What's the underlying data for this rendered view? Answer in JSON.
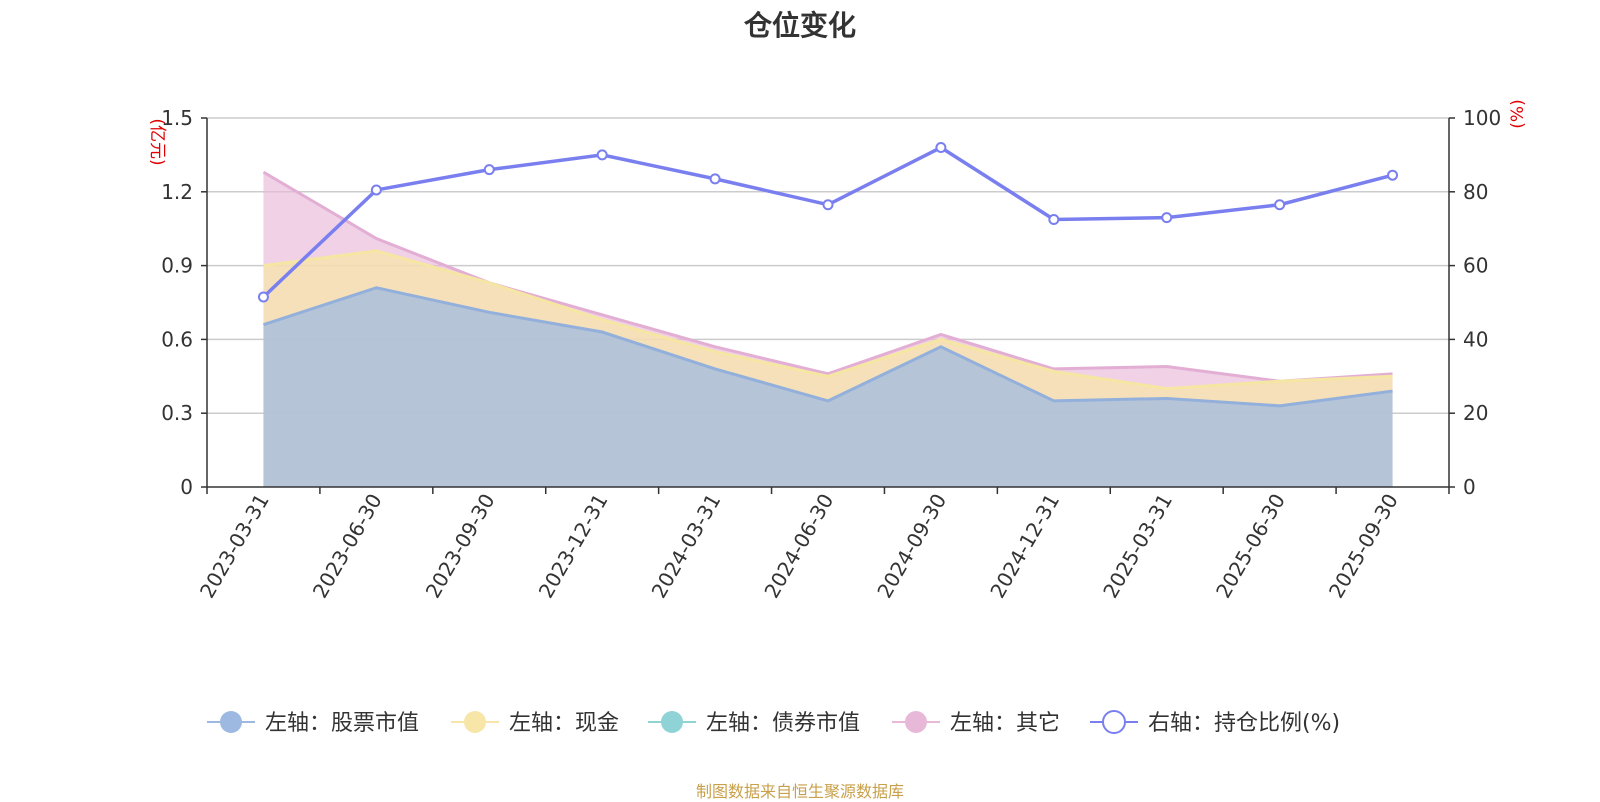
{
  "title": "仓位变化",
  "source": "制图数据来自恒生聚源数据库",
  "chart_data": {
    "type": "area",
    "title": "仓位变化",
    "categories": [
      "2023-03-31",
      "2023-06-30",
      "2023-09-30",
      "2023-12-31",
      "2024-03-31",
      "2024-06-30",
      "2024-09-30",
      "2024-12-31",
      "2025-03-31",
      "2025-06-30",
      "2025-09-30"
    ],
    "left_axis": {
      "unit": "(亿元)",
      "ylim": [
        0,
        1.5
      ],
      "ticks": [
        "0",
        "0.3",
        "0.6",
        "0.9",
        "1.2",
        "1.5"
      ]
    },
    "right_axis": {
      "unit": "(%)",
      "ylim": [
        0,
        100
      ],
      "ticks": [
        "0",
        "20",
        "40",
        "60",
        "80",
        "100"
      ]
    },
    "series": [
      {
        "name": "左轴：股票市值",
        "axis": "left",
        "color": "#9db8e1",
        "values": [
          0.66,
          0.81,
          0.71,
          0.63,
          0.48,
          0.35,
          0.57,
          0.35,
          0.36,
          0.33,
          0.39
        ]
      },
      {
        "name": "左轴：现金",
        "axis": "left",
        "color": "#f7e6a8",
        "values": [
          0.9,
          0.96,
          0.83,
          0.68,
          0.55,
          0.45,
          0.6,
          0.47,
          0.4,
          0.43,
          0.45
        ]
      },
      {
        "name": "左轴：债券市值",
        "axis": "left",
        "color": "#8fd3d6",
        "values": [
          0,
          0,
          0,
          0,
          0,
          0,
          0,
          0,
          0,
          0,
          0
        ]
      },
      {
        "name": "左轴：其它",
        "axis": "left",
        "color": "#e8b8d8",
        "values": [
          1.28,
          1.01,
          0.83,
          0.7,
          0.57,
          0.46,
          0.62,
          0.48,
          0.49,
          0.43,
          0.46
        ]
      },
      {
        "name": "右轴：持仓比例(%)",
        "axis": "right",
        "color": "#7a7fef",
        "values": [
          51.5,
          80.5,
          86.0,
          90.0,
          83.5,
          76.5,
          92.0,
          72.5,
          73.0,
          76.5,
          84.5
        ]
      }
    ]
  }
}
